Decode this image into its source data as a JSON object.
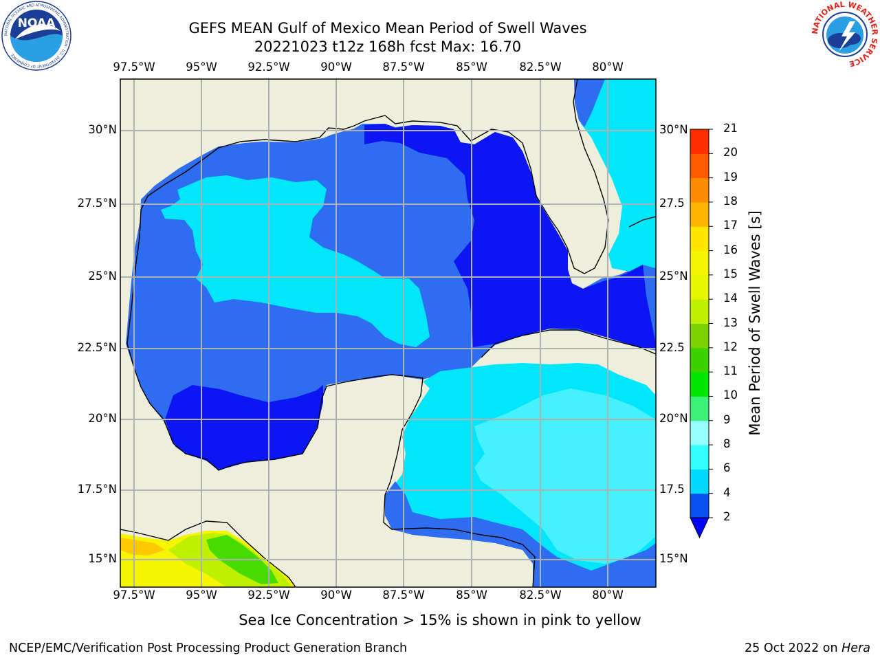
{
  "header": {
    "title_line1": "GEFS MEAN Gulf of Mexico Mean Period of Swell Waves",
    "title_line2": "20221023 t12z 168h fcst   Max: 16.70"
  },
  "logos": {
    "left": {
      "name": "NOAA",
      "text": "NOAA",
      "ring_text": "NATIONAL OCEANIC AND ATMOSPHERIC ADMINISTRATION · U.S. DEPARTMENT OF COMMERCE"
    },
    "right": {
      "name": "National Weather Service",
      "ring_text": "NATIONAL WEATHER SERVICE"
    }
  },
  "map": {
    "lon_ticks": [
      "97.5°W",
      "95°W",
      "92.5°W",
      "90°W",
      "87.5°W",
      "85°W",
      "82.5°W",
      "80°W"
    ],
    "lat_ticks_left": [
      "30°N",
      "27.5°N",
      "25°N",
      "22.5°N",
      "20°N",
      "17.5°N",
      "15°N"
    ],
    "lat_ticks_right": [
      "30°N",
      "27.5",
      "25°N",
      "22.5",
      "20°N",
      "17.5",
      "15°N"
    ],
    "colors": {
      "land": "#eeeedc",
      "gridline": "#b0b0b0",
      "coastline": "#000000"
    }
  },
  "colorbar": {
    "label": "Mean Period of Swell Waves [s]",
    "tick_labels": [
      "2",
      "4",
      "6",
      "8",
      "9",
      "10",
      "11",
      "12",
      "13",
      "14",
      "15",
      "16",
      "17",
      "18",
      "19",
      "20",
      "21"
    ],
    "colors": [
      "#0a50f0",
      "#00d8ff",
      "#32ffff",
      "#96ffff",
      "#3cf078",
      "#00e600",
      "#3cd200",
      "#7cd200",
      "#bef000",
      "#e6f500",
      "#f5f500",
      "#ffe600",
      "#ffb400",
      "#ff8c00",
      "#ff5a00",
      "#ff2d00",
      "#ff0000"
    ],
    "extend_color": "#0000ff"
  },
  "subtitle": "Sea Ice Concentration > 15% is shown in pink to yellow",
  "footer": {
    "left": "NCEP/EMC/Verification Post Processing Product Generation Branch",
    "right_prefix": "25 Oct 2022 on ",
    "right_host": "Hera"
  }
}
